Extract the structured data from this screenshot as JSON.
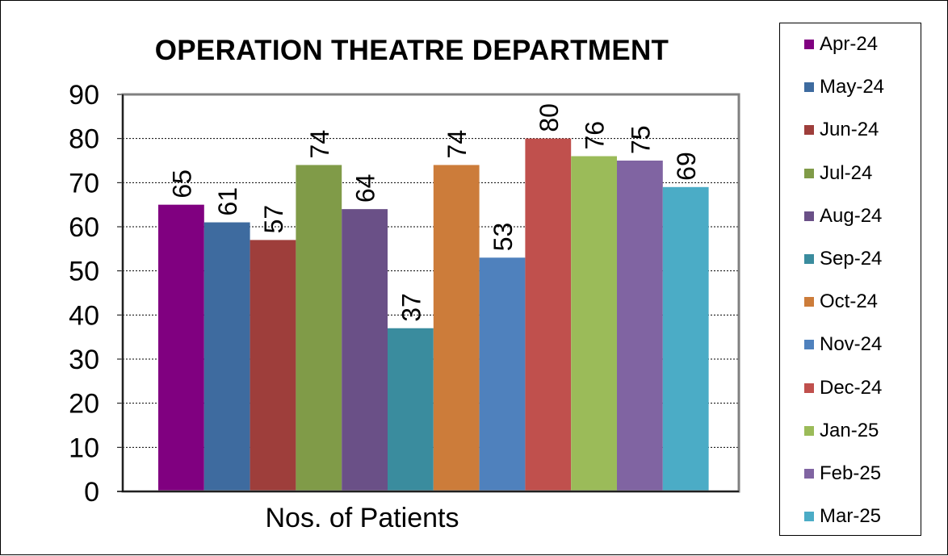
{
  "chart_data": {
    "type": "bar",
    "title": "OPERATION THEATRE DEPARTMENT",
    "categories": [
      "Nos. of Patients"
    ],
    "ylim": [
      0,
      90
    ],
    "yticks": [
      0,
      10,
      20,
      30,
      40,
      50,
      60,
      70,
      80,
      90
    ],
    "grid": true,
    "legend_position": "right",
    "data_labels": true,
    "series": [
      {
        "name": "Apr-24",
        "values": [
          65
        ],
        "color": "#800080"
      },
      {
        "name": "May-24",
        "values": [
          61
        ],
        "color": "#3E6B9F"
      },
      {
        "name": "Jun-24",
        "values": [
          57
        ],
        "color": "#9E3E3B"
      },
      {
        "name": "Jul-24",
        "values": [
          74
        ],
        "color": "#809B48"
      },
      {
        "name": "Aug-24",
        "values": [
          64
        ],
        "color": "#6A5087"
      },
      {
        "name": "Sep-24",
        "values": [
          37
        ],
        "color": "#3A8C9E"
      },
      {
        "name": "Oct-24",
        "values": [
          74
        ],
        "color": "#CC7C3A"
      },
      {
        "name": "Nov-24",
        "values": [
          53
        ],
        "color": "#4F81BD"
      },
      {
        "name": "Dec-24",
        "values": [
          80
        ],
        "color": "#C0504D"
      },
      {
        "name": "Jan-25",
        "values": [
          76
        ],
        "color": "#9BBB59"
      },
      {
        "name": "Feb-25",
        "values": [
          75
        ],
        "color": "#8064A2"
      },
      {
        "name": "Mar-25",
        "values": [
          69
        ],
        "color": "#4BACC6"
      }
    ]
  }
}
